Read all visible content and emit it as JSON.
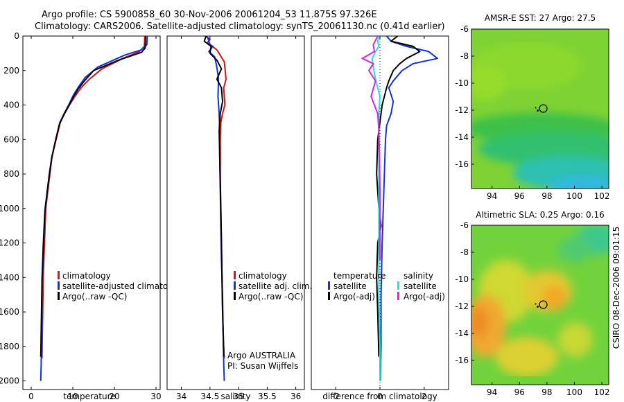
{
  "header": {
    "title_line1": "Argo profile: CS 5900858_60 30-Nov-2006 20061204_53 11.875S 97.326E",
    "title_line2": "Climatology: CARS2006. Satellite-adjusted climatology: synTS_20061130.nc (0.41d earlier)"
  },
  "side_label": "CSIRO 08-Dec-2006 09:01:15",
  "colors": {
    "climatology": "#e01010",
    "satellite": "#1030e0",
    "argo": "#000000",
    "satellite_sal": "#20e0e0",
    "argo_sal": "#e020e0"
  },
  "chart_data": [
    {
      "type": "line",
      "id": "temperature",
      "xlabel": "temperature",
      "ylabel": "",
      "xlim": [
        -2,
        31
      ],
      "ylim": [
        2050,
        0
      ],
      "xticks": [
        0,
        10,
        20,
        30
      ],
      "yticks": [
        0,
        200,
        400,
        600,
        800,
        1000,
        1200,
        1400,
        1600,
        1800,
        2000
      ],
      "legend": [
        "climatology",
        "satellite-adjusted climatology",
        "Argo(..raw -QC)"
      ],
      "legend_placement": "lower-right",
      "series": [
        {
          "name": "climatology",
          "color": "#e01010",
          "x": [
            27.3,
            27.2,
            26.0,
            22.0,
            17.0,
            14.0,
            12.0,
            10.5,
            9.2,
            8.0,
            7.0,
            6.0,
            5.0,
            4.5,
            4.0,
            3.5,
            3.2,
            2.9,
            2.7,
            2.6
          ],
          "y": [
            0,
            60,
            90,
            130,
            190,
            250,
            300,
            350,
            400,
            450,
            500,
            600,
            700,
            800,
            900,
            1000,
            1200,
            1400,
            1700,
            1870
          ]
        },
        {
          "name": "satellite-adjusted climatology",
          "color": "#1030e0",
          "x": [
            27.9,
            27.8,
            26.5,
            22.5,
            16.0,
            13.0,
            11.5,
            10.2,
            9.0,
            7.9,
            6.9,
            5.9,
            5.0,
            4.4,
            3.9,
            3.4,
            3.0,
            2.7,
            2.5,
            2.4,
            2.3
          ],
          "y": [
            0,
            50,
            80,
            110,
            180,
            240,
            290,
            340,
            400,
            450,
            500,
            600,
            700,
            800,
            900,
            1000,
            1200,
            1400,
            1700,
            1900,
            2000
          ]
        },
        {
          "name": "Argo(..raw -QC)",
          "color": "#000000",
          "x": [
            27.5,
            27.4,
            26.5,
            21.0,
            15.0,
            12.8,
            11.2,
            10.0,
            8.9,
            7.8,
            6.8,
            5.8,
            4.9,
            4.3,
            3.8,
            3.3,
            2.9,
            2.6,
            2.4,
            2.3
          ],
          "y": [
            0,
            70,
            95,
            140,
            200,
            260,
            310,
            360,
            410,
            460,
            510,
            610,
            710,
            810,
            910,
            1010,
            1210,
            1410,
            1710,
            1860
          ]
        }
      ]
    },
    {
      "type": "line",
      "id": "salinity",
      "xlabel": "salinity",
      "xlim": [
        33.75,
        36.15
      ],
      "ylim": [
        2050,
        0
      ],
      "xticks": [
        34,
        34.5,
        35,
        35.5,
        36
      ],
      "xticklabels": [
        "34",
        "34.5",
        "35",
        "35.5",
        "36"
      ],
      "legend": [
        "climatology",
        "satellite adj. clim.",
        "Argo(..raw -QC)"
      ],
      "legend_placement": "lower-right",
      "annotations": [
        "Argo AUSTRALIA",
        "PI: Susan Wijffels"
      ],
      "series": [
        {
          "name": "climatology",
          "color": "#e01010",
          "x": [
            34.45,
            34.5,
            34.62,
            34.75,
            34.78,
            34.74,
            34.76,
            34.72,
            34.69,
            34.68,
            34.68,
            34.69,
            34.7,
            34.71,
            34.72,
            34.73,
            34.74,
            34.75
          ],
          "y": [
            0,
            50,
            80,
            150,
            250,
            300,
            400,
            450,
            500,
            600,
            800,
            1000,
            1200,
            1400,
            1600,
            1700,
            1800,
            1870
          ]
        },
        {
          "name": "satellite adj. clim.",
          "color": "#1030e0",
          "x": [
            34.42,
            34.5,
            34.45,
            34.55,
            34.48,
            34.58,
            34.62,
            34.65,
            34.64,
            34.66,
            34.67,
            34.67,
            34.68,
            34.69,
            34.7,
            34.72,
            34.73,
            34.74,
            34.75
          ],
          "y": [
            0,
            20,
            40,
            60,
            90,
            120,
            180,
            250,
            350,
            450,
            550,
            700,
            900,
            1100,
            1300,
            1500,
            1700,
            1900,
            2000
          ]
        },
        {
          "name": "Argo(..raw -QC)",
          "color": "#000000",
          "x": [
            34.43,
            34.4,
            34.52,
            34.5,
            34.62,
            34.7,
            34.62,
            34.7,
            34.72,
            34.68,
            34.66,
            34.67,
            34.69,
            34.7,
            34.71,
            34.72,
            34.74
          ],
          "y": [
            0,
            30,
            60,
            100,
            140,
            190,
            250,
            300,
            380,
            450,
            550,
            700,
            1000,
            1200,
            1400,
            1600,
            1860
          ]
        }
      ]
    },
    {
      "type": "line",
      "id": "difference",
      "xlabel": "difference from climatology",
      "xlim": [
        -3.1,
        3.1
      ],
      "ylim": [
        2050,
        0
      ],
      "xticks": [
        -2,
        0,
        2
      ],
      "legend_temperature": [
        "temperature",
        "satellite",
        "Argo(-adj)"
      ],
      "legend_salinity": [
        "salinity",
        "satellite",
        "Argo(-adj)"
      ],
      "legend_placement": "lower-center",
      "series": [
        {
          "name": "satellite",
          "group": "temperature",
          "color": "#1030e0",
          "x": [
            0.3,
            0.5,
            1.2,
            2.2,
            2.6,
            1.5,
            1.0,
            0.6,
            0.4,
            0.6,
            0.5,
            0.3,
            0.25,
            0.2,
            0.15,
            0.1,
            0.05,
            0.05,
            0.02
          ],
          "y": [
            0,
            30,
            60,
            90,
            130,
            160,
            200,
            260,
            300,
            380,
            450,
            520,
            600,
            800,
            1000,
            1200,
            1500,
            1800,
            2000
          ]
        },
        {
          "name": "Argo(-adj)",
          "group": "temperature",
          "color": "#000000",
          "x": [
            0.8,
            0.5,
            1.5,
            1.8,
            1.2,
            0.9,
            0.6,
            0.4,
            0.3,
            0.1,
            0.0,
            -0.1,
            -0.15,
            -0.05,
            0.05,
            -0.1,
            -0.15,
            -0.1,
            -0.05
          ],
          "y": [
            0,
            30,
            60,
            90,
            130,
            160,
            200,
            260,
            300,
            400,
            500,
            600,
            800,
            1000,
            1100,
            1200,
            1400,
            1600,
            1860
          ]
        },
        {
          "name": "satellite",
          "group": "salinity",
          "color": "#20e0e0",
          "x": [
            -0.05,
            -0.1,
            -0.05,
            -0.2,
            -0.35,
            -0.3,
            -0.2,
            0.0,
            -0.05,
            -0.05,
            -0.05,
            -0.05,
            -0.05,
            -0.05,
            0.0,
            0.0
          ],
          "y": [
            0,
            30,
            60,
            90,
            130,
            180,
            250,
            350,
            450,
            550,
            700,
            900,
            1200,
            1500,
            1800,
            2000
          ]
        },
        {
          "name": "Argo(-adj)",
          "group": "salinity",
          "color": "#e020e0",
          "x": [
            -0.1,
            -0.3,
            -0.25,
            -0.8,
            -0.3,
            -0.5,
            -0.2,
            -0.4,
            -0.1,
            -0.05,
            -0.02,
            0.0,
            0.0,
            0.0
          ],
          "y": [
            0,
            50,
            90,
            130,
            160,
            200,
            260,
            350,
            450,
            550,
            700,
            900,
            1100,
            1300
          ]
        }
      ]
    },
    {
      "type": "heatmap",
      "id": "sst_map",
      "title": "AMSR-E SST: 27 Argo: 27.5",
      "xlim": [
        92.5,
        102.5
      ],
      "ylim": [
        -17.8,
        -6
      ],
      "xticks": [
        94,
        96,
        98,
        100,
        102
      ],
      "yticks": [
        -6,
        -8,
        -10,
        -12,
        -14,
        -16
      ],
      "marker": {
        "lon": 97.326,
        "lat": -11.875
      }
    },
    {
      "type": "heatmap",
      "id": "sla_map",
      "title": "Altimetric SLA: 0.25 Argo: 0.16",
      "xlim": [
        92.5,
        102.5
      ],
      "ylim": [
        -17.8,
        -6
      ],
      "xticks": [
        94,
        96,
        98,
        100,
        102
      ],
      "yticks": [
        -6,
        -8,
        -10,
        -12,
        -14,
        -16
      ],
      "marker": {
        "lon": 97.326,
        "lat": -11.875
      }
    }
  ]
}
